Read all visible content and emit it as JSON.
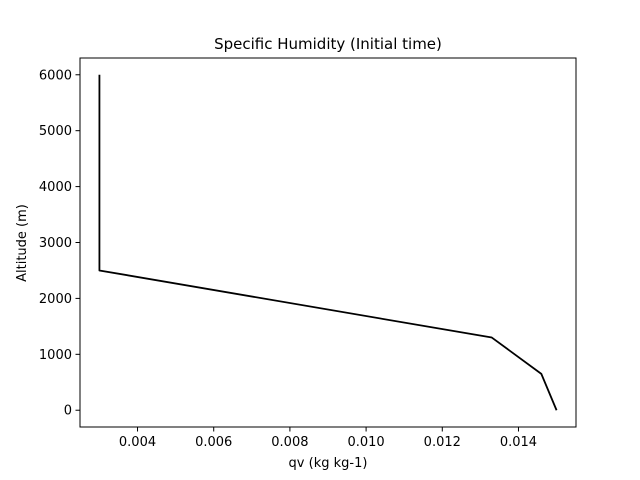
{
  "chart_data": {
    "type": "line",
    "title": "Specific Humidity (Initial time)",
    "xlabel": "qv (kg kg-1)",
    "ylabel": "Altitude (m)",
    "xlim": [
      0.00249,
      0.01551
    ],
    "ylim": [
      -300,
      6300
    ],
    "xticks": [
      0.004,
      0.006,
      0.008,
      0.01,
      0.012,
      0.014
    ],
    "xtick_labels": [
      "0.004",
      "0.006",
      "0.008",
      "0.010",
      "0.012",
      "0.014"
    ],
    "yticks": [
      0,
      1000,
      2000,
      3000,
      4000,
      5000,
      6000
    ],
    "ytick_labels": [
      "0",
      "1000",
      "2000",
      "3000",
      "4000",
      "5000",
      "6000"
    ],
    "grid": false,
    "series": [
      {
        "color": "#000000",
        "x": [
          0.015,
          0.0146,
          0.0133,
          0.003,
          0.003
        ],
        "y": [
          0,
          650,
          1300,
          2500,
          6000
        ]
      }
    ]
  }
}
